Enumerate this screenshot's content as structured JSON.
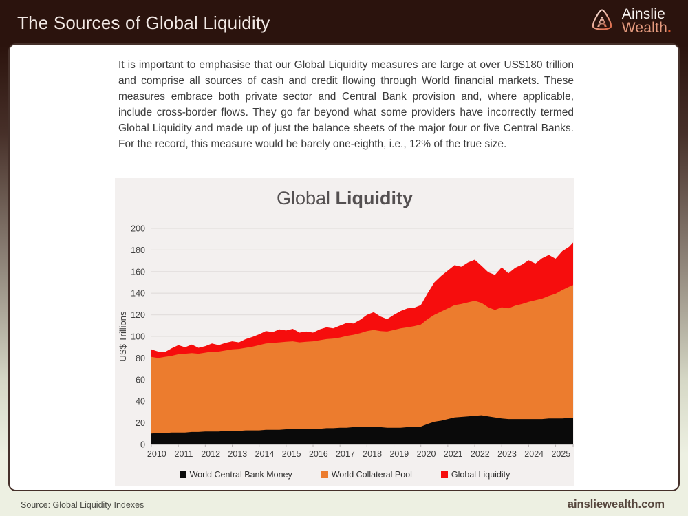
{
  "header": {
    "title": "The Sources of Global Liquidity",
    "brand": {
      "line1": "Ainslie",
      "line2": "Wealth",
      "dot": ".",
      "mark_letter": "A"
    }
  },
  "intro_text": "It is important to emphasise that our Global Liquidity measures are large at over US$180 trillion and comprise all sources of cash and credit flowing through World financial markets. These measures embrace both private sector and Central Bank provision and, where applicable, include cross-border flows. They go far beyond what some providers have incorrectly termed Global Liquidity and made up of just the balance sheets of the major four or five Central Banks. For the record, this measure would be barely one-eighth, i.e., 12% of the true size.",
  "chart_data": {
    "type": "area",
    "stacked": true,
    "title_regular": "Global ",
    "title_bold": "Liquidity",
    "ylabel": "US$ Trillions",
    "ylim": [
      0,
      200
    ],
    "y_ticks": [
      0,
      20,
      40,
      60,
      80,
      100,
      120,
      140,
      160,
      180,
      200
    ],
    "x_tick_labels": [
      "2010",
      "2011",
      "2012",
      "2013",
      "2014",
      "2015",
      "2016",
      "2017",
      "2018",
      "2019",
      "2020",
      "2021",
      "2022",
      "2023",
      "2024",
      "2025"
    ],
    "grid": true,
    "legend_position": "bottom",
    "x": [
      2010,
      2010.25,
      2010.5,
      2010.75,
      2011,
      2011.25,
      2011.5,
      2011.75,
      2012,
      2012.25,
      2012.5,
      2012.75,
      2013,
      2013.25,
      2013.5,
      2013.75,
      2014,
      2014.25,
      2014.5,
      2014.75,
      2015,
      2015.25,
      2015.5,
      2015.75,
      2016,
      2016.25,
      2016.5,
      2016.75,
      2017,
      2017.25,
      2017.5,
      2017.75,
      2018,
      2018.25,
      2018.5,
      2018.75,
      2019,
      2019.25,
      2019.5,
      2019.75,
      2020,
      2020.25,
      2020.5,
      2020.75,
      2021,
      2021.25,
      2021.5,
      2021.75,
      2022,
      2022.25,
      2022.5,
      2022.75,
      2023,
      2023.25,
      2023.5,
      2023.75,
      2024,
      2024.25,
      2024.5,
      2024.75,
      2025,
      2025.25,
      2025.5,
      2025.65
    ],
    "series": [
      {
        "name": "World Central Bank Money",
        "color": "#0a0a0a",
        "note": "cumulative stacked top, US$ trillions",
        "cumulative_values": [
          10,
          10.5,
          10.5,
          11,
          11,
          11,
          11.5,
          11.5,
          12,
          12,
          12,
          12.5,
          12.5,
          12.5,
          13,
          13,
          13,
          13.5,
          13.5,
          13.5,
          14,
          14,
          14,
          14,
          14.5,
          14.5,
          15,
          15,
          15.5,
          15.5,
          16,
          16,
          16,
          16,
          16,
          15.5,
          15.5,
          15.5,
          16,
          16,
          16.5,
          19,
          21,
          22,
          23.5,
          25,
          25.5,
          26,
          26.5,
          27,
          26,
          25,
          24,
          23.5,
          23.5,
          23.5,
          23.5,
          23.5,
          23.5,
          24,
          24,
          24,
          24.5,
          24.5
        ]
      },
      {
        "name": "World Collateral Pool",
        "color": "#EC7C2E",
        "note": "cumulative stacked top, US$ trillions",
        "cumulative_values": [
          81,
          80,
          81,
          82,
          83.5,
          84,
          84.5,
          84,
          85,
          86,
          86,
          87,
          88,
          88.5,
          89.5,
          90.5,
          92,
          93.5,
          94,
          94.5,
          95,
          95.5,
          94.5,
          95,
          95.5,
          96.5,
          97.5,
          98,
          99,
          100.5,
          101.5,
          103,
          105,
          106,
          105,
          104.5,
          106,
          107.5,
          108.5,
          109.5,
          111,
          116,
          120,
          123,
          126,
          129,
          130,
          131.5,
          133,
          131,
          127,
          124.5,
          127,
          126,
          128.5,
          130,
          132,
          133.5,
          135,
          137.5,
          139.5,
          143,
          146,
          147.5
        ]
      },
      {
        "name": "Global Liquidity",
        "color": "#F60D0D",
        "note": "cumulative stacked top = total Global Liquidity, US$ trillions",
        "cumulative_values": [
          88,
          86,
          85.5,
          89,
          92,
          90,
          92.5,
          89.5,
          91,
          93.5,
          92,
          94,
          95.5,
          94.5,
          97.5,
          99.5,
          102,
          105,
          104,
          106.5,
          105.5,
          107,
          103.5,
          104.5,
          103.5,
          106.5,
          108.5,
          107.5,
          110,
          112.5,
          112,
          115.5,
          120,
          122.5,
          118.5,
          116,
          120,
          123.5,
          126,
          126.5,
          129,
          140,
          150,
          156,
          161,
          166,
          164.5,
          168.5,
          171,
          165.5,
          159.5,
          157,
          164,
          158.5,
          163.5,
          166.5,
          170.5,
          167.5,
          172.5,
          175.5,
          172,
          179,
          183,
          187
        ]
      }
    ],
    "colors": {
      "plot_background": "#f3f0ef",
      "gridline": "#e3dfde",
      "axis": "#b9b5b4"
    }
  },
  "footer": {
    "source": "Source: Global Liquidity Indexes",
    "site": "ainsliewealth.com"
  },
  "colors": {
    "header_background": "#2b130d",
    "page_bottom": "#edf0e2",
    "accent_coral": "#e59a7e"
  }
}
